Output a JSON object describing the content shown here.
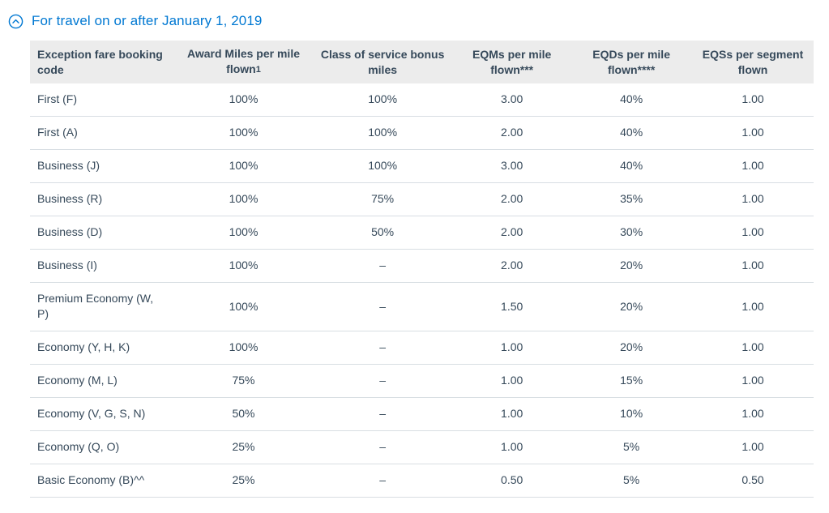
{
  "accordion": {
    "title": "For travel on or after January 1, 2019",
    "expanded": true
  },
  "colors": {
    "accent_blue": "#0078D2",
    "header_background": "#ececec",
    "text_slate": "#36495A",
    "row_divider": "#d8dee3"
  },
  "chart_data": {
    "type": "table",
    "title": "For travel on or after January 1, 2019",
    "columns": [
      {
        "label": "Exception fare booking code",
        "footnote": ""
      },
      {
        "label": "Award Miles per mile flown",
        "footnote": "1"
      },
      {
        "label": "Class of service bonus miles",
        "footnote": ""
      },
      {
        "label": "EQMs per mile flown***",
        "footnote": ""
      },
      {
        "label": "EQDs per mile flown****",
        "footnote": ""
      },
      {
        "label": "EQSs per segment flown",
        "footnote": ""
      }
    ],
    "rows": [
      [
        "First (F)",
        "100%",
        "100%",
        "3.00",
        "40%",
        "1.00"
      ],
      [
        "First (A)",
        "100%",
        "100%",
        "2.00",
        "40%",
        "1.00"
      ],
      [
        "Business (J)",
        "100%",
        "100%",
        "3.00",
        "40%",
        "1.00"
      ],
      [
        "Business (R)",
        "100%",
        "75%",
        "2.00",
        "35%",
        "1.00"
      ],
      [
        "Business (D)",
        "100%",
        "50%",
        "2.00",
        "30%",
        "1.00"
      ],
      [
        "Business (I)",
        "100%",
        "–",
        "2.00",
        "20%",
        "1.00"
      ],
      [
        "Premium Economy (W, P)",
        "100%",
        "–",
        "1.50",
        "20%",
        "1.00"
      ],
      [
        "Economy (Y, H, K)",
        "100%",
        "–",
        "1.00",
        "20%",
        "1.00"
      ],
      [
        "Economy (M, L)",
        "75%",
        "–",
        "1.00",
        "15%",
        "1.00"
      ],
      [
        "Economy (V, G, S, N)",
        "50%",
        "–",
        "1.00",
        "10%",
        "1.00"
      ],
      [
        "Economy (Q, O)",
        "25%",
        "–",
        "1.00",
        "5%",
        "1.00"
      ],
      [
        "Basic Economy (B)^^",
        "25%",
        "–",
        "0.50",
        "5%",
        "0.50"
      ]
    ]
  }
}
